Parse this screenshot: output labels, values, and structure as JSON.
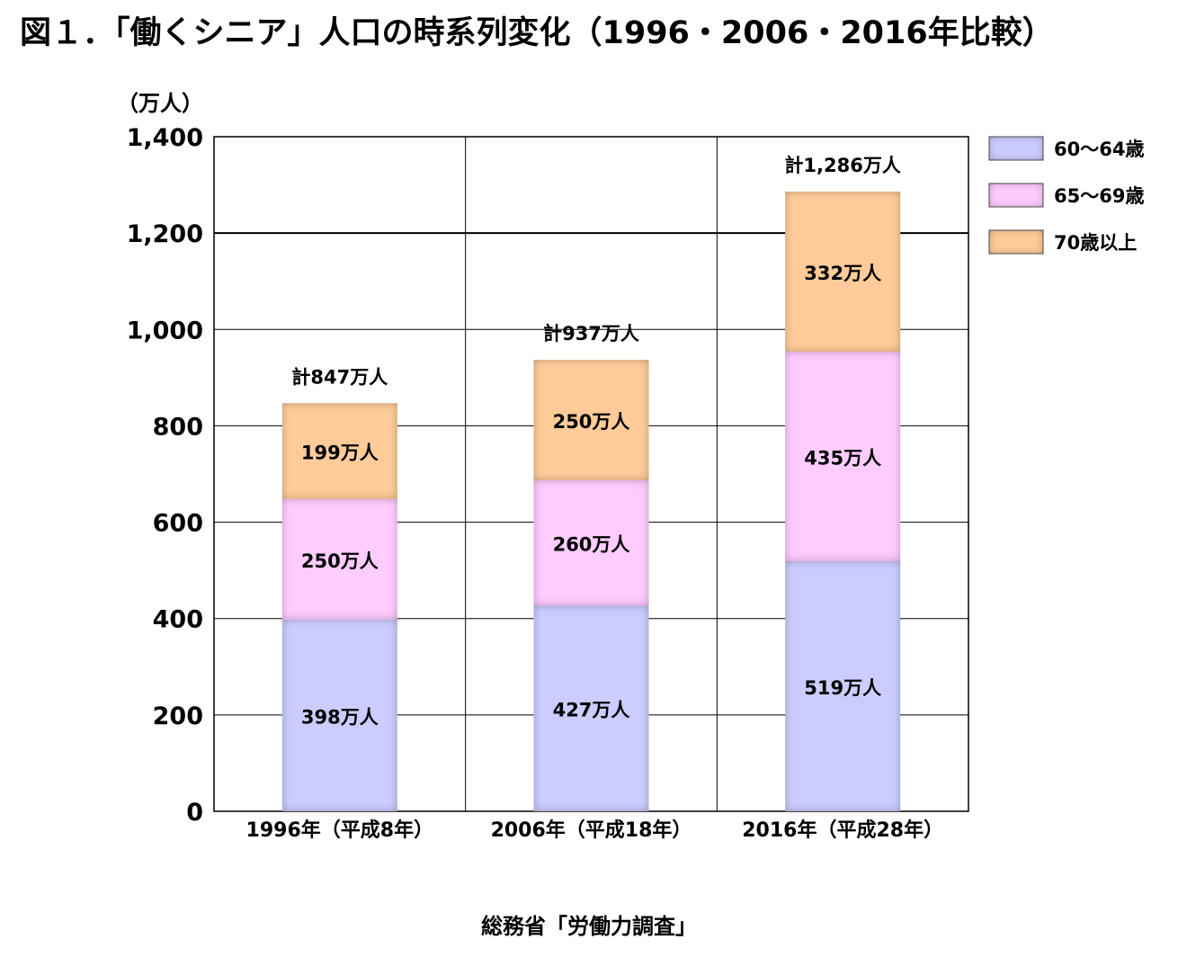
{
  "title": "図１．「働くシニア」人口の時系列変化（1996・2006・2016年比較）",
  "source": "総務省「労働力調査」",
  "chart_data": {
    "type": "bar",
    "stacked": true,
    "title": "図１．「働くシニア」人口の時系列変化（1996・2006・2016年比較）",
    "ylabel": "（万人）",
    "ylim": [
      0,
      1400
    ],
    "yticks": [
      0,
      200,
      400,
      600,
      800,
      1000,
      1200,
      1400
    ],
    "ytick_labels": [
      "0",
      "200",
      "400",
      "600",
      "800",
      "1,000",
      "1,200",
      "1,400"
    ],
    "categories": [
      "1996年（平成8年）",
      "2006年（平成18年）",
      "2016年（平成28年）"
    ],
    "series": [
      {
        "name": "60～64歳",
        "color": "#ccccff",
        "values": [
          398,
          427,
          519
        ],
        "labels": [
          "398万人",
          "427万人",
          "519万人"
        ]
      },
      {
        "name": "65～69歳",
        "color": "#ffccff",
        "values": [
          250,
          260,
          435
        ],
        "labels": [
          "250万人",
          "260万人",
          "435万人"
        ]
      },
      {
        "name": "70歳以上",
        "color": "#ffcc99",
        "values": [
          199,
          250,
          332
        ],
        "labels": [
          "199万人",
          "250万人",
          "332万人"
        ]
      }
    ],
    "totals": [
      847,
      937,
      1286
    ],
    "total_labels": [
      "計847万人",
      "計937万人",
      "計1,286万人"
    ],
    "legend_position": "right",
    "grid": true
  }
}
